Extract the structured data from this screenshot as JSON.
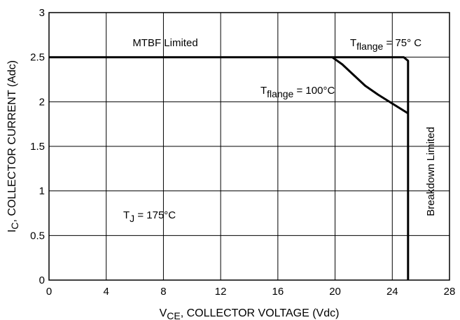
{
  "chart_data": {
    "type": "line",
    "title": "",
    "xlabel": {
      "main": "V",
      "sub": "CE",
      "rest": ", COLLECTOR VOLTAGE (Vdc)"
    },
    "ylabel": {
      "main": "I",
      "sub": "C",
      "rest": ", COLLECTOR CURRENT (Adc)"
    },
    "xlim": [
      0,
      28
    ],
    "ylim": [
      0,
      3
    ],
    "xticks": [
      0,
      4,
      8,
      12,
      16,
      20,
      24,
      28
    ],
    "yticks": [
      0,
      0.5,
      1,
      1.5,
      2,
      2.5,
      3
    ],
    "xtick_labels": [
      "0",
      "4",
      "8",
      "12",
      "16",
      "20",
      "24",
      "28"
    ],
    "ytick_labels": [
      "0",
      "0.5",
      "1",
      "1.5",
      "2",
      "2.5",
      "3"
    ],
    "grid": true,
    "series": [
      {
        "name": "T flange = 75° C",
        "x": [
          0,
          24.8,
          25.1,
          25.1
        ],
        "y": [
          2.5,
          2.5,
          2.46,
          0
        ]
      },
      {
        "name": "T flange = 100°C",
        "x": [
          19.8,
          20.5,
          21.3,
          22.1,
          23.0,
          24.0,
          25.1
        ],
        "y": [
          2.5,
          2.42,
          2.3,
          2.18,
          2.08,
          1.98,
          1.87
        ]
      }
    ],
    "annotations": [
      {
        "id": "mtbf",
        "text": "MTBF Limited",
        "x": 11,
        "y": 2.65
      },
      {
        "id": "tflange75",
        "main": "T",
        "sub": "flange",
        "rest": " = 75° C",
        "x": 26,
        "y": 2.65
      },
      {
        "id": "tflange100",
        "main": "T",
        "sub": "flange",
        "rest": " = 100°C",
        "x": 20.5,
        "y": 2.04
      },
      {
        "id": "tj",
        "main": "T",
        "sub": "J",
        "rest": " = 175°C",
        "x": 11,
        "y": 0.75
      },
      {
        "id": "breakdown",
        "text": "Breakdown Limited",
        "x": 26.8,
        "y": 1.15
      }
    ]
  }
}
